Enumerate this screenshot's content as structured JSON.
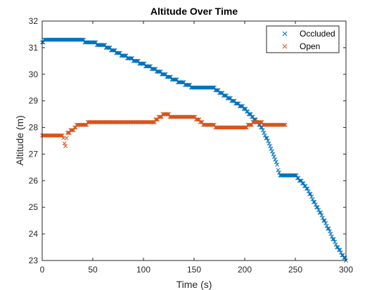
{
  "chart_data": {
    "type": "scatter",
    "title": "Altitude Over Time",
    "xlabel": "Time (s)",
    "ylabel": "Altitude (m)",
    "xlim": [
      0,
      300
    ],
    "ylim": [
      23,
      32
    ],
    "xticks": [
      0,
      50,
      100,
      150,
      200,
      250,
      300
    ],
    "yticks": [
      23,
      24,
      25,
      26,
      27,
      28,
      29,
      30,
      31,
      32
    ],
    "grid": false,
    "legend_position": "top-right",
    "marker": "x",
    "series": [
      {
        "name": "Occluded",
        "color": "#0072BD",
        "breakpoints": [
          [
            0,
            31.2
          ],
          [
            3,
            31.3
          ],
          [
            35,
            31.3
          ],
          [
            60,
            31.1
          ],
          [
            80,
            30.7
          ],
          [
            110,
            30.2
          ],
          [
            130,
            29.8
          ],
          [
            150,
            29.5
          ],
          [
            168,
            29.5
          ],
          [
            185,
            29.1
          ],
          [
            200,
            28.7
          ],
          [
            210,
            28.3
          ],
          [
            218,
            27.9
          ],
          [
            225,
            27.3
          ],
          [
            230,
            26.8
          ],
          [
            235,
            26.2
          ],
          [
            250,
            26.2
          ],
          [
            260,
            25.8
          ],
          [
            270,
            25.1
          ],
          [
            280,
            24.4
          ],
          [
            290,
            23.6
          ],
          [
            300,
            23.0
          ]
        ]
      },
      {
        "name": "Open",
        "color": "#D95319",
        "breakpoints": [
          [
            0,
            27.7
          ],
          [
            5,
            27.7
          ],
          [
            20,
            27.7
          ],
          [
            22,
            27.4
          ],
          [
            23,
            27.3
          ],
          [
            25,
            27.8
          ],
          [
            30,
            27.9
          ],
          [
            35,
            28.1
          ],
          [
            55,
            28.2
          ],
          [
            80,
            28.2
          ],
          [
            100,
            28.2
          ],
          [
            110,
            28.2
          ],
          [
            120,
            28.5
          ],
          [
            130,
            28.4
          ],
          [
            150,
            28.4
          ],
          [
            160,
            28.1
          ],
          [
            180,
            28.0
          ],
          [
            200,
            28.0
          ],
          [
            210,
            28.2
          ],
          [
            225,
            28.1
          ],
          [
            240,
            28.1
          ]
        ]
      }
    ]
  }
}
